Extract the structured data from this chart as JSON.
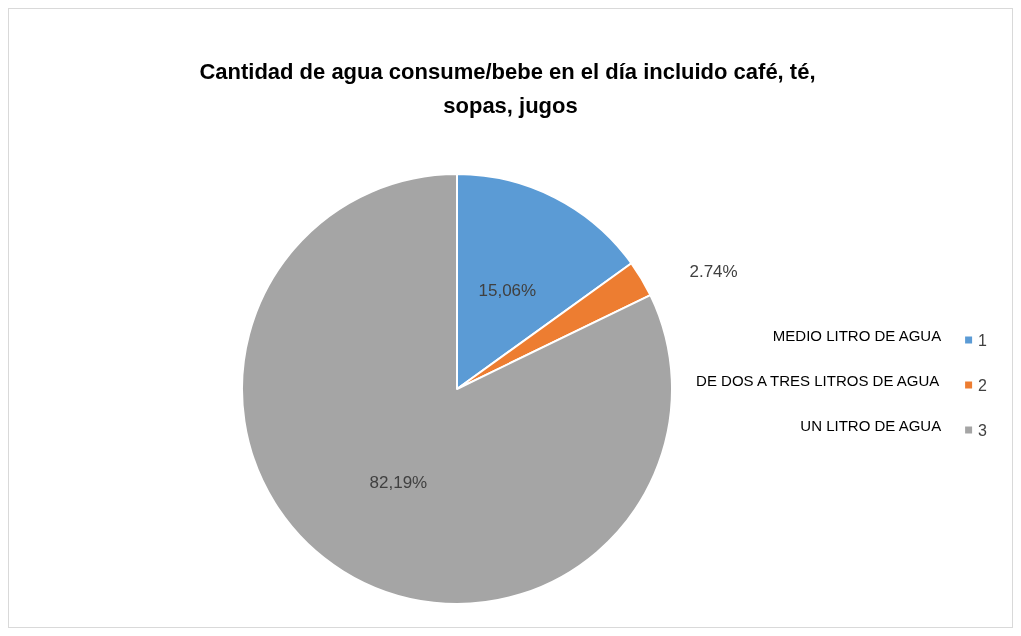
{
  "chart_data": {
    "type": "pie",
    "title": "Cantidad de agua consume/bebe en el día incluido café, té, sopas, jugos",
    "categories": [
      "1",
      "2",
      "3"
    ],
    "values": [
      15.06,
      2.74,
      82.19
    ],
    "value_labels": [
      "15,06%",
      "2.74%",
      "82,19%"
    ],
    "colors": [
      "#5b9bd5",
      "#ed7d31",
      "#a5a5a5"
    ],
    "legend": "right",
    "annotations": [
      "MEDIO LITRO DE AGUA",
      "DE DOS A TRES LITROS DE AGUA",
      "UN LITRO DE AGUA"
    ]
  }
}
